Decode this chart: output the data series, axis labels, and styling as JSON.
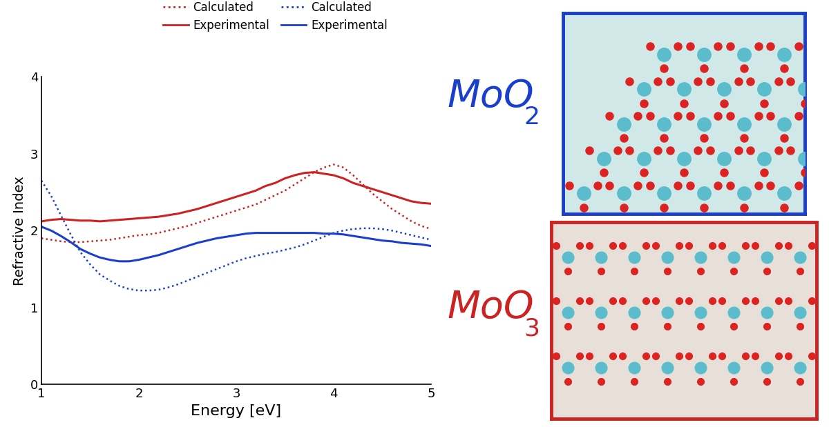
{
  "title": "",
  "xlabel": "Energy [eV]",
  "ylabel": "Refractive Index",
  "xlim": [
    1,
    5
  ],
  "ylim": [
    0,
    4
  ],
  "yticks": [
    0,
    1,
    2,
    3,
    4
  ],
  "xticks": [
    1,
    2,
    3,
    4,
    5
  ],
  "x": [
    1.0,
    1.1,
    1.2,
    1.3,
    1.4,
    1.5,
    1.6,
    1.7,
    1.8,
    1.9,
    2.0,
    2.1,
    2.2,
    2.3,
    2.4,
    2.5,
    2.6,
    2.7,
    2.8,
    2.9,
    3.0,
    3.1,
    3.2,
    3.3,
    3.4,
    3.5,
    3.6,
    3.7,
    3.8,
    3.9,
    4.0,
    4.1,
    4.2,
    4.3,
    4.4,
    4.5,
    4.6,
    4.7,
    4.8,
    4.9,
    5.0
  ],
  "red_solid_y": [
    2.12,
    2.14,
    2.15,
    2.14,
    2.13,
    2.13,
    2.12,
    2.13,
    2.14,
    2.15,
    2.16,
    2.17,
    2.18,
    2.2,
    2.22,
    2.25,
    2.28,
    2.32,
    2.36,
    2.4,
    2.44,
    2.48,
    2.52,
    2.58,
    2.62,
    2.68,
    2.72,
    2.75,
    2.76,
    2.74,
    2.72,
    2.68,
    2.62,
    2.58,
    2.54,
    2.5,
    2.46,
    2.42,
    2.38,
    2.36,
    2.35
  ],
  "red_dotted_y": [
    1.9,
    1.88,
    1.86,
    1.85,
    1.85,
    1.86,
    1.87,
    1.88,
    1.9,
    1.92,
    1.94,
    1.95,
    1.97,
    2.0,
    2.03,
    2.06,
    2.1,
    2.14,
    2.18,
    2.22,
    2.26,
    2.3,
    2.34,
    2.4,
    2.46,
    2.52,
    2.6,
    2.68,
    2.76,
    2.82,
    2.86,
    2.82,
    2.72,
    2.6,
    2.48,
    2.38,
    2.28,
    2.2,
    2.12,
    2.06,
    2.02
  ],
  "blue_solid_y": [
    2.05,
    2.0,
    1.93,
    1.85,
    1.76,
    1.7,
    1.65,
    1.62,
    1.6,
    1.6,
    1.62,
    1.65,
    1.68,
    1.72,
    1.76,
    1.8,
    1.84,
    1.87,
    1.9,
    1.92,
    1.94,
    1.96,
    1.97,
    1.97,
    1.97,
    1.97,
    1.97,
    1.97,
    1.97,
    1.96,
    1.96,
    1.95,
    1.93,
    1.91,
    1.89,
    1.87,
    1.86,
    1.84,
    1.83,
    1.82,
    1.8
  ],
  "blue_dotted_y": [
    2.65,
    2.45,
    2.2,
    1.95,
    1.72,
    1.56,
    1.43,
    1.35,
    1.28,
    1.24,
    1.22,
    1.22,
    1.23,
    1.26,
    1.3,
    1.35,
    1.4,
    1.45,
    1.5,
    1.55,
    1.6,
    1.64,
    1.67,
    1.7,
    1.72,
    1.75,
    1.78,
    1.82,
    1.87,
    1.92,
    1.97,
    2.0,
    2.02,
    2.03,
    2.03,
    2.02,
    2.0,
    1.97,
    1.94,
    1.91,
    1.88
  ],
  "red_color": "#CC2222",
  "blue_color": "#1A3FCC",
  "moo2_color": "#1A3FCC",
  "moo3_color": "#CC2222",
  "bg_color": "#ffffff"
}
